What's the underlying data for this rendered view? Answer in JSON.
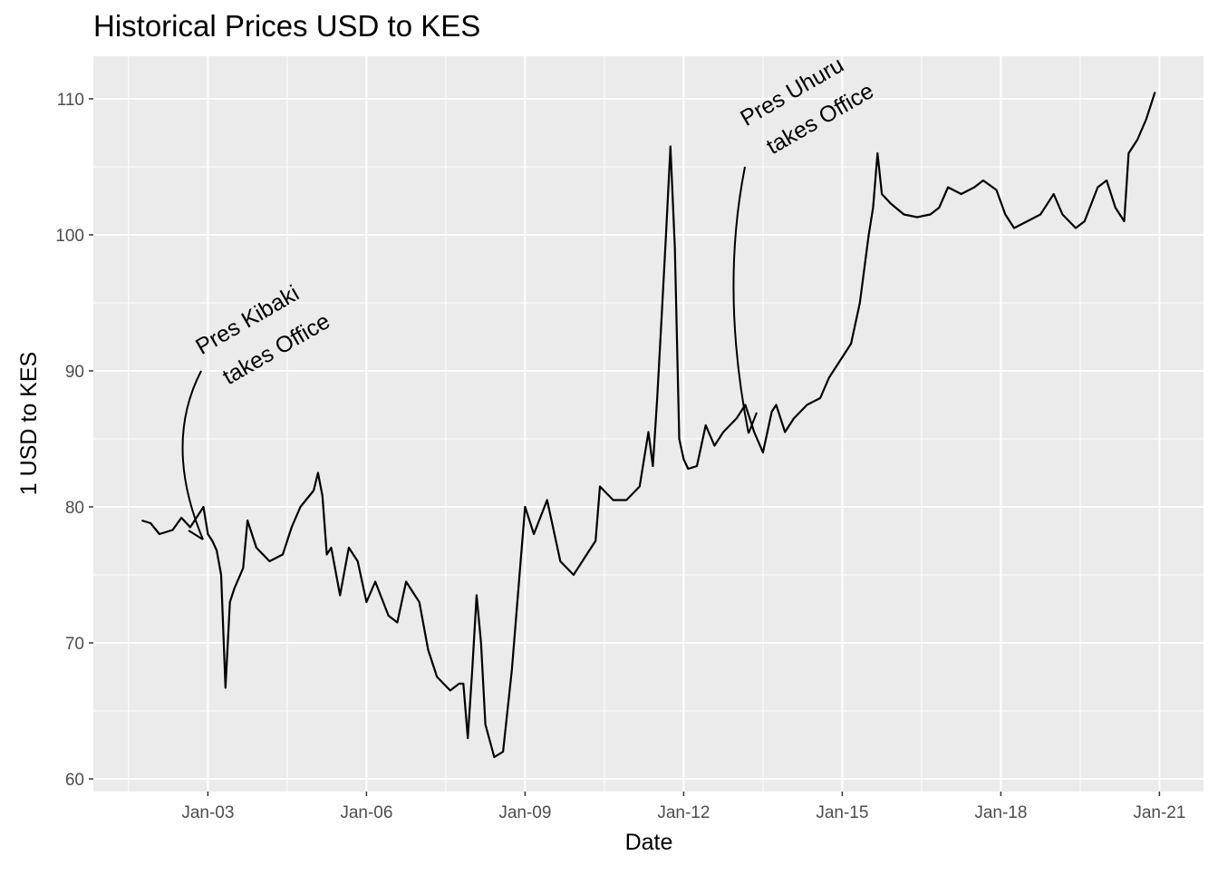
{
  "chart_data": {
    "type": "line",
    "title": "Historical Prices USD to KES",
    "x_label": "Date",
    "y_label": "1 USD to KES",
    "color": "#000000",
    "grid": true,
    "minor_grid": true,
    "xlim": [
      "2000-11",
      "2021-11"
    ],
    "ylim": [
      59.07,
      113.13
    ],
    "xticks": [
      {
        "value": "2003-01",
        "label": "Jan-03"
      },
      {
        "value": "2006-01",
        "label": "Jan-06"
      },
      {
        "value": "2009-01",
        "label": "Jan-09"
      },
      {
        "value": "2012-01",
        "label": "Jan-12"
      },
      {
        "value": "2015-01",
        "label": "Jan-15"
      },
      {
        "value": "2018-01",
        "label": "Jan-18"
      },
      {
        "value": "2021-01",
        "label": "Jan-21"
      }
    ],
    "yticks": [
      60,
      70,
      80,
      90,
      100,
      110
    ],
    "annotations": [
      [
        "Pres Kibaki",
        "takes Office"
      ],
      [
        "Pres Uhuru",
        "takes Office"
      ]
    ],
    "x": [
      "2001-10",
      "2001-12",
      "2002-02",
      "2002-05",
      "2002-07",
      "2002-09",
      "2002-11",
      "2002-12",
      "2003-01",
      "2003-02",
      "2003-03",
      "2003-04",
      "2003-05",
      "2003-06",
      "2003-07",
      "2003-09",
      "2003-10",
      "2003-12",
      "2004-03",
      "2004-06",
      "2004-08",
      "2004-10",
      "2005-01",
      "2005-02",
      "2005-03",
      "2005-04",
      "2005-05",
      "2005-07",
      "2005-09",
      "2005-11",
      "2006-01",
      "2006-03",
      "2006-06",
      "2006-08",
      "2006-10",
      "2007-01",
      "2007-03",
      "2007-05",
      "2007-08",
      "2007-10",
      "2007-11",
      "2007-12",
      "2008-01",
      "2008-02",
      "2008-03",
      "2008-04",
      "2008-06",
      "2008-08",
      "2008-10",
      "2008-12",
      "2009-01",
      "2009-03",
      "2009-06",
      "2009-07",
      "2009-09",
      "2009-12",
      "2010-03",
      "2010-05",
      "2010-06",
      "2010-09",
      "2010-12",
      "2011-03",
      "2011-05",
      "2011-06",
      "2011-07",
      "2011-08",
      "2011-09",
      "2011-10",
      "2011-11",
      "2011-12",
      "2012-01",
      "2012-02",
      "2012-04",
      "2012-06",
      "2012-08",
      "2012-10",
      "2013-01",
      "2013-03",
      "2013-05",
      "2013-07",
      "2013-09",
      "2013-10",
      "2013-12",
      "2014-02",
      "2014-05",
      "2014-08",
      "2014-10",
      "2015-01",
      "2015-03",
      "2015-05",
      "2015-07",
      "2015-08",
      "2015-09",
      "2015-10",
      "2015-12",
      "2016-03",
      "2016-06",
      "2016-09",
      "2016-11",
      "2017-01",
      "2017-04",
      "2017-07",
      "2017-09",
      "2017-12",
      "2018-02",
      "2018-04",
      "2018-07",
      "2018-10",
      "2019-01",
      "2019-03",
      "2019-06",
      "2019-08",
      "2019-11",
      "2020-01",
      "2020-03",
      "2020-05",
      "2020-06",
      "2020-08",
      "2020-10",
      "2020-12"
    ],
    "values": [
      79.0,
      78.8,
      78.0,
      78.3,
      79.2,
      78.5,
      79.5,
      80.0,
      78.0,
      77.5,
      76.8,
      75.0,
      66.7,
      73.0,
      74.0,
      75.5,
      79.0,
      77.0,
      76.0,
      76.5,
      78.5,
      80.0,
      81.2,
      82.5,
      80.8,
      76.5,
      77.0,
      73.5,
      77.0,
      76.0,
      73.0,
      74.5,
      72.0,
      71.5,
      74.5,
      73.0,
      69.5,
      67.5,
      66.5,
      67.0,
      67.0,
      63.0,
      68.0,
      73.5,
      70.0,
      64.0,
      61.6,
      62.0,
      68.0,
      76.0,
      80.0,
      78.0,
      80.5,
      79.0,
      76.0,
      75.0,
      76.5,
      77.5,
      81.5,
      80.5,
      80.5,
      81.5,
      85.5,
      83.0,
      88.0,
      94.0,
      100.0,
      106.5,
      99.0,
      85.0,
      83.5,
      82.8,
      83.0,
      86.0,
      84.5,
      85.5,
      86.5,
      87.5,
      85.5,
      84.0,
      87.0,
      87.5,
      85.5,
      86.5,
      87.5,
      88.0,
      89.5,
      91.0,
      92.0,
      95.0,
      100.0,
      102.0,
      106.0,
      103.0,
      102.3,
      101.5,
      101.3,
      101.5,
      102.0,
      103.5,
      103.0,
      103.5,
      104.0,
      103.3,
      101.5,
      100.5,
      101.0,
      101.5,
      103.0,
      101.5,
      100.5,
      101.0,
      103.5,
      104.0,
      102.0,
      101.0,
      106.0,
      107.0,
      108.5,
      110.5
    ]
  }
}
